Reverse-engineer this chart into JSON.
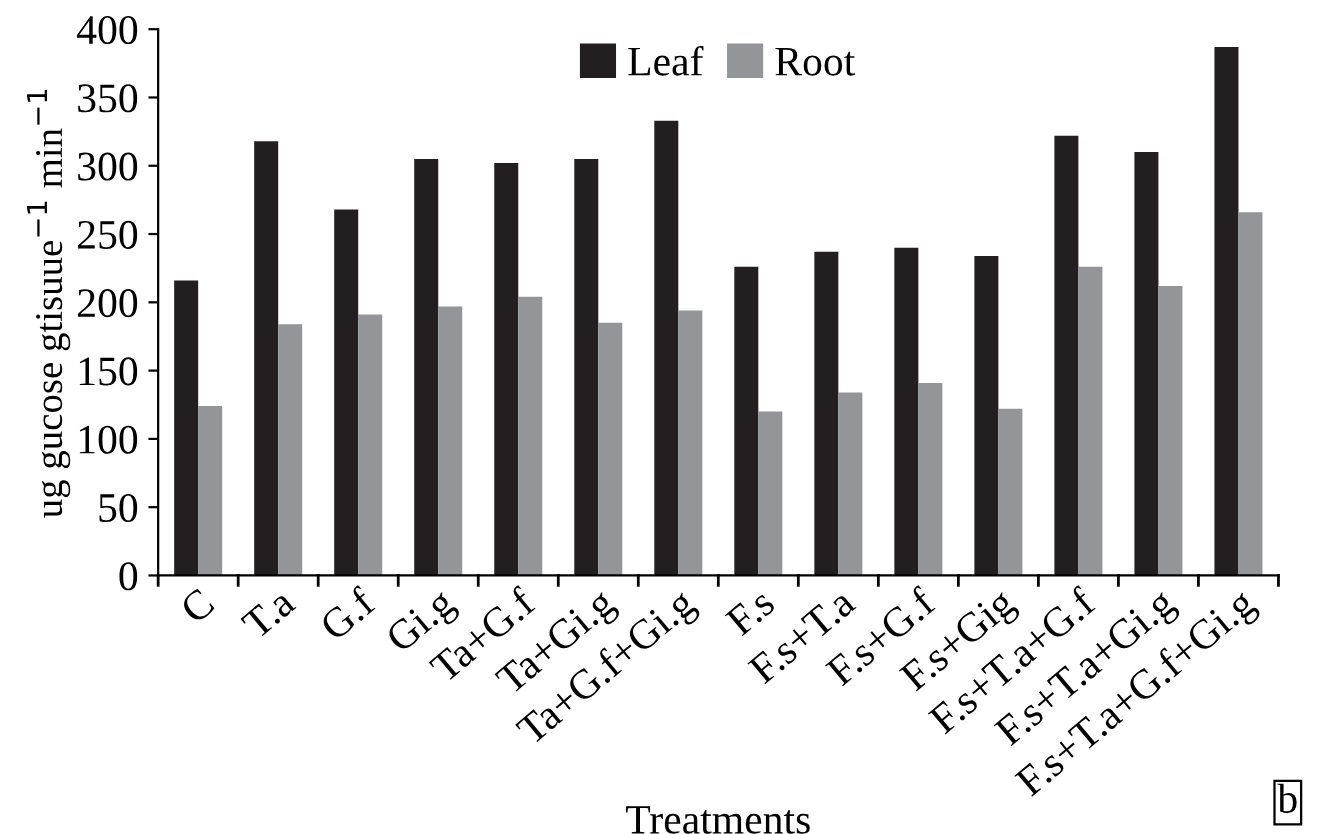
{
  "chart_data": {
    "type": "bar",
    "xlabel": "Treatments",
    "ylabel": "ug gucose gtisuue$^{−1}$ min$^{−1}$",
    "categories": [
      "C",
      "T.a",
      "G.f",
      "Gi.g",
      "Ta+G.f",
      "Ta+Gi.g",
      "Ta+G.f+Gi.g",
      "F.s",
      "F.s+T.a",
      "F.s+G.f",
      "F.s+Gig",
      "F.s+T.a+G.f",
      "F.s+T.a+Gi.g",
      "F.s+T.a+G.f+Gi.g"
    ],
    "series": [
      {
        "name": "Leaf",
        "color": "#231f20",
        "values": [
          216,
          318,
          268,
          305,
          302,
          305,
          333,
          226,
          237,
          240,
          234,
          322,
          310,
          387
        ]
      },
      {
        "name": "Root",
        "color": "#939598",
        "values": [
          124,
          184,
          191,
          197,
          204,
          185,
          194,
          120,
          134,
          141,
          122,
          226,
          212,
          266
        ]
      }
    ],
    "ylim": [
      0,
      400
    ],
    "yticks": [
      0,
      50,
      100,
      150,
      200,
      250,
      300,
      350,
      400
    ],
    "grid": false,
    "legend": "top",
    "annotations": [
      "b"
    ]
  }
}
